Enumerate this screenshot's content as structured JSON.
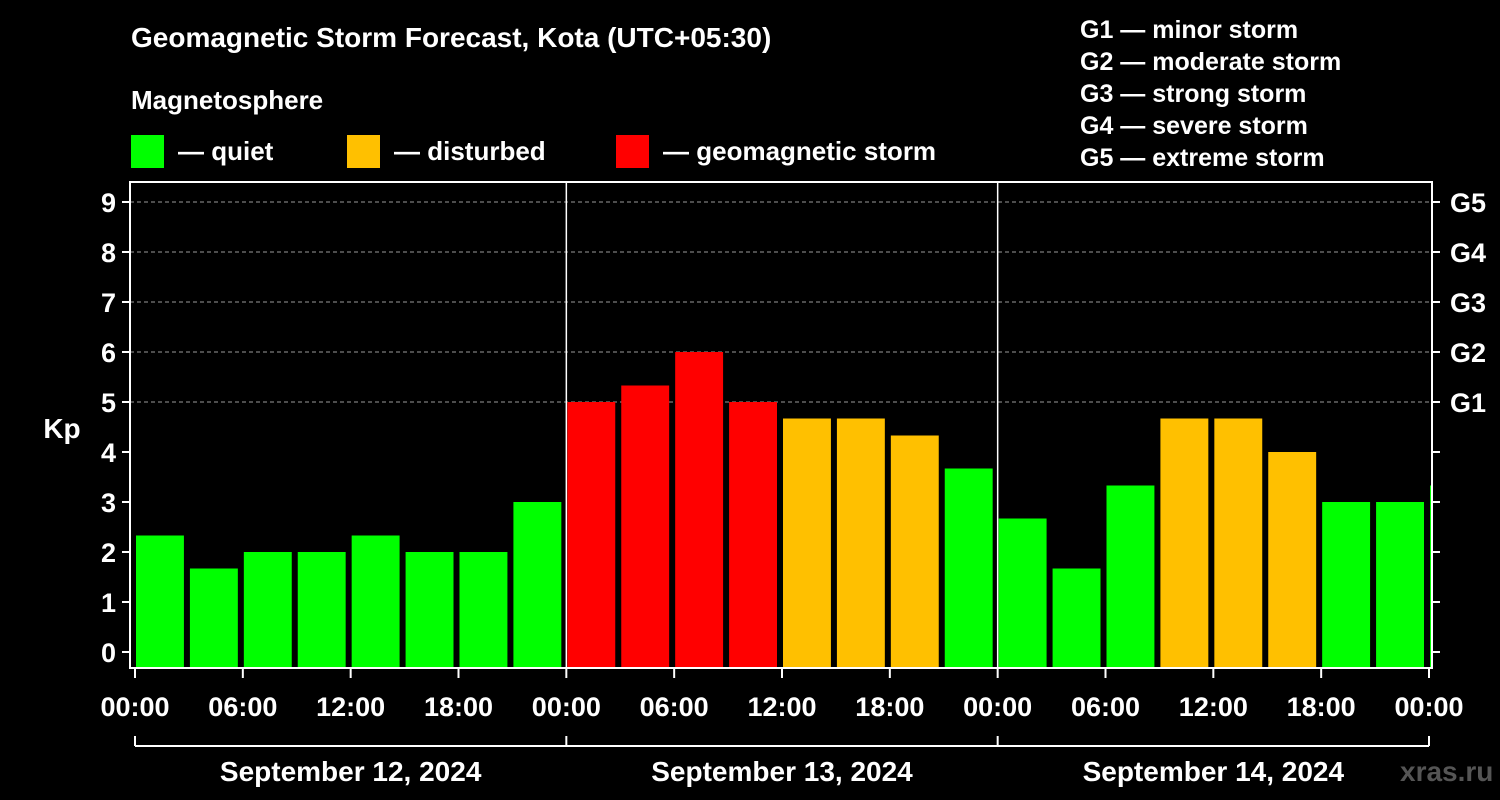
{
  "title": "Geomagnetic Storm Forecast, Kota (UTC+05:30)",
  "magnetosphere": {
    "title": "Magnetosphere",
    "legend": [
      {
        "label": "— quiet",
        "color": "#00ff00"
      },
      {
        "label": "— disturbed",
        "color": "#ffc000"
      },
      {
        "label": "— geomagnetic storm",
        "color": "#ff0000"
      }
    ]
  },
  "storm_levels": [
    "G1 — minor storm",
    "G2 — moderate storm",
    "G3 — strong storm",
    "G4 — severe storm",
    "G5 — extreme storm"
  ],
  "watermark": "xras.ru",
  "chart_data": {
    "type": "bar",
    "ylabel": "Kp",
    "ylim": [
      0,
      9
    ],
    "yticks": [
      "0",
      "1",
      "2",
      "3",
      "4",
      "5",
      "6",
      "7",
      "8",
      "9"
    ],
    "g_ticks": [
      {
        "kp": 5,
        "label": "G1"
      },
      {
        "kp": 6,
        "label": "G2"
      },
      {
        "kp": 7,
        "label": "G3"
      },
      {
        "kp": 8,
        "label": "G4"
      },
      {
        "kp": 9,
        "label": "G5"
      }
    ],
    "xticks": [
      "00:00",
      "06:00",
      "12:00",
      "18:00",
      "00:00",
      "06:00",
      "12:00",
      "18:00",
      "00:00",
      "06:00",
      "12:00",
      "18:00",
      "00:00"
    ],
    "days": [
      "September 12, 2024",
      "September 13, 2024",
      "September 14, 2024"
    ],
    "interval_hours": 3,
    "values": [
      2.33,
      1.67,
      2.0,
      2.0,
      2.33,
      2.0,
      2.0,
      3.0,
      5.0,
      5.33,
      6.0,
      5.0,
      4.67,
      4.67,
      4.33,
      3.67,
      2.67,
      1.67,
      3.33,
      4.67,
      4.67,
      4.0,
      3.0,
      3.0,
      3.33
    ],
    "colors": {
      "quiet": "#00ff00",
      "disturbed": "#ffc000",
      "storm": "#ff0000"
    },
    "thresholds": {
      "disturbed": 4.0,
      "storm": 5.0
    }
  }
}
